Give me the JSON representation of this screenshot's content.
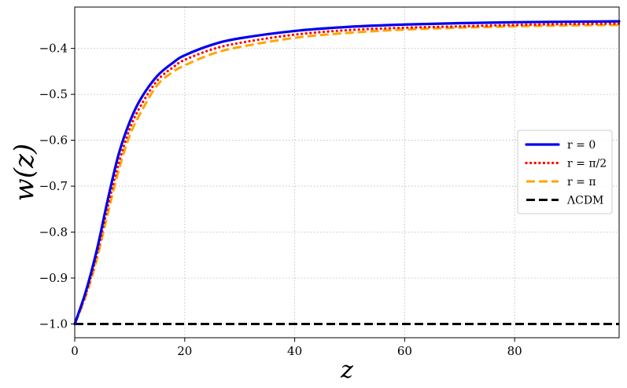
{
  "chart_data": {
    "type": "line",
    "title": "",
    "xlabel": "z",
    "ylabel": "w(z)",
    "xlim": [
      0,
      99
    ],
    "ylim": [
      -1.03,
      -0.31
    ],
    "xticks": [
      0,
      20,
      40,
      60,
      80
    ],
    "yticks": [
      -1.0,
      -0.9,
      -0.8,
      -0.7,
      -0.6,
      -0.5,
      -0.4
    ],
    "x_tick_labels": [
      "0",
      "20",
      "40",
      "60",
      "80"
    ],
    "y_tick_labels": [
      "−1.0",
      "−0.9",
      "−0.8",
      "−0.7",
      "−0.6",
      "−0.5",
      "−0.4"
    ],
    "grid": true,
    "legend_position": "center-right",
    "series": [
      {
        "name": "r = 0",
        "color": "#0000ee",
        "style": "solid",
        "x": [
          0,
          2,
          4,
          6,
          8,
          10,
          12,
          15,
          18,
          20,
          25,
          30,
          40,
          50,
          60,
          70,
          80,
          90,
          99
        ],
        "y": [
          -1.0,
          -0.93,
          -0.84,
          -0.73,
          -0.63,
          -0.56,
          -0.51,
          -0.46,
          -0.43,
          -0.415,
          -0.392,
          -0.378,
          -0.362,
          -0.353,
          -0.348,
          -0.345,
          -0.343,
          -0.342,
          -0.341
        ]
      },
      {
        "name": "r = π/2",
        "color": "#ff0000",
        "style": "dotted",
        "x": [
          0,
          2,
          4,
          6,
          8,
          10,
          12,
          15,
          18,
          20,
          25,
          30,
          40,
          50,
          60,
          70,
          80,
          90,
          99
        ],
        "y": [
          -1.0,
          -0.935,
          -0.85,
          -0.745,
          -0.65,
          -0.575,
          -0.525,
          -0.47,
          -0.44,
          -0.425,
          -0.402,
          -0.388,
          -0.37,
          -0.36,
          -0.355,
          -0.352,
          -0.349,
          -0.347,
          -0.346
        ]
      },
      {
        "name": "r = π",
        "color": "#ffa500",
        "style": "dashed",
        "x": [
          0,
          2,
          4,
          6,
          8,
          10,
          12,
          15,
          18,
          20,
          25,
          30,
          40,
          50,
          60,
          70,
          80,
          90,
          99
        ],
        "y": [
          -1.0,
          -0.94,
          -0.86,
          -0.76,
          -0.665,
          -0.59,
          -0.54,
          -0.48,
          -0.45,
          -0.437,
          -0.412,
          -0.397,
          -0.377,
          -0.366,
          -0.359,
          -0.355,
          -0.352,
          -0.35,
          -0.349
        ]
      },
      {
        "name": "ΛCDM",
        "color": "#000000",
        "style": "dashed",
        "x": [
          0,
          99
        ],
        "y": [
          -1.0,
          -1.0
        ]
      }
    ]
  }
}
